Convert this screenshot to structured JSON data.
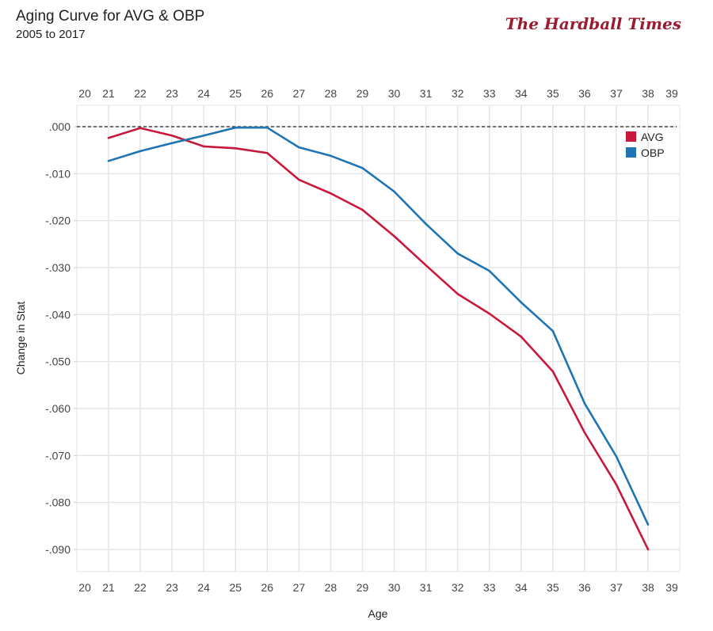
{
  "chart_data": {
    "type": "line",
    "title": "Aging Curve for AVG & OBP",
    "subtitle": "2005 to 2017",
    "logo": "The Hardball Times",
    "xlabel": "Age",
    "ylabel": "Change in Stat",
    "x_ticks": [
      "20",
      "21",
      "22",
      "23",
      "24",
      "25",
      "26",
      "27",
      "28",
      "29",
      "30",
      "31",
      "32",
      "33",
      "34",
      "35",
      "36",
      "37",
      "38",
      "39"
    ],
    "y_ticks": [
      ".000",
      "-.010",
      "-.020",
      "-.030",
      "-.040",
      "-.050",
      "-.060",
      "-.070",
      "-.080",
      "-.090"
    ],
    "y_tick_values": [
      0,
      -0.01,
      -0.02,
      -0.03,
      -0.04,
      -0.05,
      -0.06,
      -0.07,
      -0.08,
      -0.09
    ],
    "xlim": [
      20,
      39
    ],
    "ylim": [
      -0.0945,
      0.0045
    ],
    "grid": true,
    "reference_line": {
      "y": 0,
      "style": "dashed"
    },
    "legend_placement": "top-right",
    "x": [
      21,
      22,
      23,
      24,
      25,
      26,
      27,
      28,
      29,
      30,
      31,
      32,
      33,
      34,
      35,
      36,
      37,
      38
    ],
    "series": [
      {
        "name": "AVG",
        "color": "#c8193c",
        "values": [
          -0.0024,
          -0.0003,
          -0.0019,
          -0.0042,
          -0.0046,
          -0.0056,
          -0.0113,
          -0.0142,
          -0.0177,
          -0.0233,
          -0.0295,
          -0.0356,
          -0.0398,
          -0.0447,
          -0.0521,
          -0.0651,
          -0.0762,
          -0.09
        ]
      },
      {
        "name": "OBP",
        "color": "#1f74b4",
        "values": [
          -0.0073,
          -0.0052,
          -0.0035,
          -0.0019,
          -0.0002,
          -0.0002,
          -0.0044,
          -0.0062,
          -0.0088,
          -0.0138,
          -0.0207,
          -0.027,
          -0.0307,
          -0.0374,
          -0.0435,
          -0.0589,
          -0.0702,
          -0.0847
        ]
      }
    ]
  }
}
